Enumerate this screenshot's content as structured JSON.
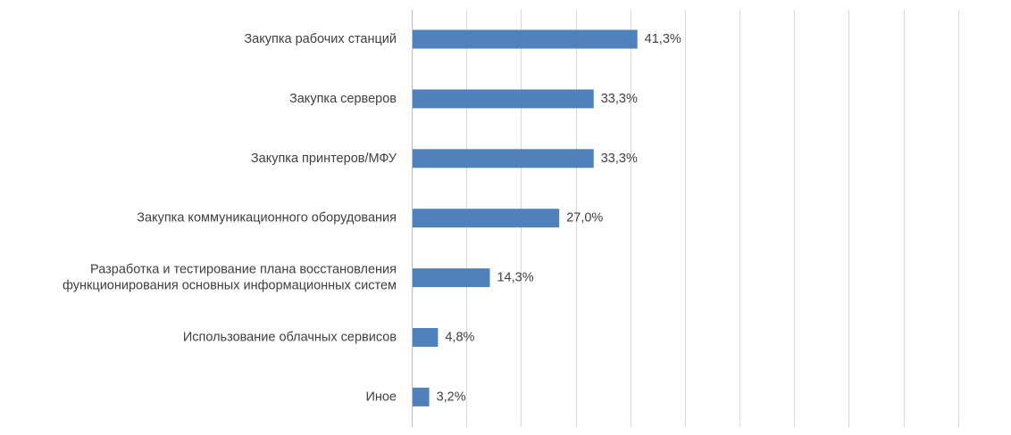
{
  "chart_data": {
    "type": "bar",
    "orientation": "horizontal",
    "categories": [
      "Закупка рабочих станций",
      "Закупка серверов",
      "Закупка принтеров/МФУ",
      "Закупка коммуникационного оборудования",
      "Разработка и тестирование плана восстановления функционирования основных информационных систем",
      "Использование облачных сервисов",
      "Иное"
    ],
    "category_lines": [
      [
        "Закупка рабочих станций"
      ],
      [
        "Закупка серверов"
      ],
      [
        "Закупка принтеров/МФУ"
      ],
      [
        "Закупка коммуникационного оборудования"
      ],
      [
        "Разработка и тестирование плана восстановления",
        "функционирования основных информационных систем"
      ],
      [
        "Использование облачных сервисов"
      ],
      [
        "Иное"
      ]
    ],
    "values": [
      41.3,
      33.3,
      33.3,
      27.0,
      14.3,
      4.8,
      3.2
    ],
    "value_labels": [
      "41,3%",
      "33,3%",
      "33,3%",
      "27,0%",
      "14,3%",
      "4,8%",
      "3,2%"
    ],
    "xlim": [
      0,
      110
    ],
    "major_unit": 10,
    "grid": true,
    "tick_labels_visible": false,
    "legend": "none",
    "title": "",
    "xlabel": "",
    "ylabel": "",
    "bar_color": "#4f81bd",
    "text_color": "#404040",
    "grid_color": "#d9d9d9"
  }
}
